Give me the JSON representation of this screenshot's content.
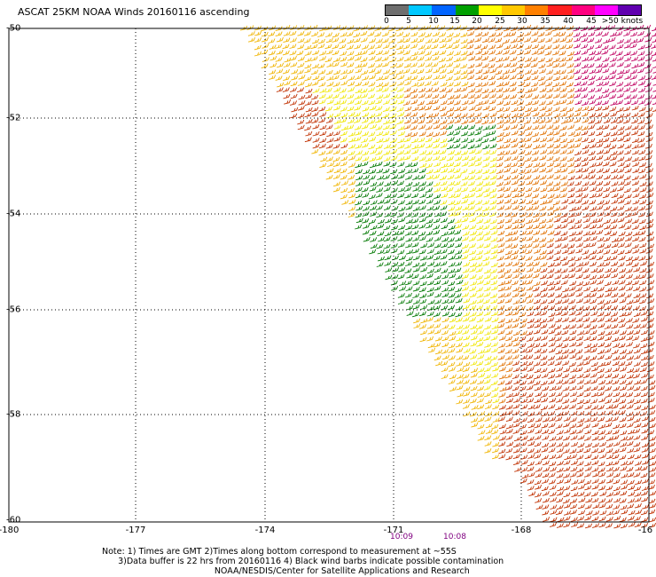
{
  "title": "ASCAT 25KM NOAA Winds 20160116 ascending",
  "scale": {
    "labels": [
      "0",
      "5",
      "10",
      "15",
      "20",
      "25",
      "30",
      "35",
      "40",
      "45",
      ">50 knots"
    ],
    "colors": [
      "#6e6e6e",
      "#00c8ff",
      "#0064ff",
      "#00a000",
      "#ffff00",
      "#ffc800",
      "#ff8000",
      "#ff2020",
      "#ff0080",
      "#ff00ff",
      "#6000b0"
    ]
  },
  "axes": {
    "x_labels": [
      "-180",
      "-177",
      "-174",
      "-171",
      "-168",
      "-16"
    ],
    "y_labels": [
      "-50",
      "-52",
      "-54",
      "-56",
      "-58",
      "-60"
    ]
  },
  "times": [
    "10:09",
    "10:08"
  ],
  "notes": {
    "line1": "Note: 1) Times are GMT 2)Times along bottom correspond to measurement at ~55S",
    "line2": "      3)Data buffer is 22 hrs from 20160116 4) Black wind barbs indicate possible contamination",
    "line3": "                                          NOAA/NESDIS/Center for Satellite Applications and Research"
  },
  "wind_colors": {
    "green": "#007800",
    "yellow": "#f0e600",
    "gold": "#f0b400",
    "orange": "#e07000",
    "red": "#c03000",
    "magenta": "#c00060"
  }
}
